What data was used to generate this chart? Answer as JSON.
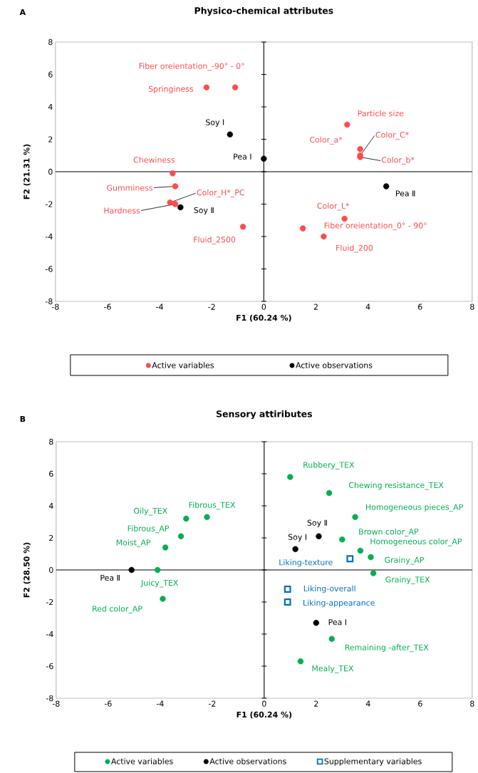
{
  "chart_data": [
    {
      "type": "scatter",
      "title": "Physico-chemical attributes",
      "xlabel": "F1 (60.24 %)",
      "ylabel": "F2 (21.31 %)",
      "xlim": [
        -8,
        8
      ],
      "ylim": [
        -8,
        8
      ],
      "xticks": [
        -8,
        -6,
        -4,
        -2,
        0,
        2,
        4,
        6,
        8
      ],
      "yticks": [
        -8,
        -6,
        -4,
        -2,
        0,
        2,
        4,
        6,
        8
      ],
      "legend": "bottom",
      "series": [
        {
          "name": "Active variables",
          "color": "#ff4b4b",
          "marker": "circle",
          "x": [
            -1.1,
            -2.2,
            -3.5,
            -3.4,
            -3.6,
            -3.4,
            -0.8,
            3.2,
            3.7,
            3.7,
            3.7,
            3.1,
            1.5,
            2.3
          ],
          "values": [
            5.2,
            5.2,
            -0.1,
            -0.9,
            -1.9,
            -2.0,
            -3.4,
            2.9,
            1.4,
            1.0,
            0.9,
            -2.9,
            -3.5,
            -4.0
          ]
        },
        {
          "name": "Active observations",
          "color": "#000000",
          "marker": "circle",
          "x": [
            -1.3,
            0.0,
            -3.2,
            4.7
          ],
          "values": [
            2.3,
            0.8,
            -2.2,
            -0.9
          ]
        }
      ],
      "annotations": [
        "A",
        {
          "text": "Fiber oreientation_-90° - 0°",
          "x": -1.1,
          "y": 5.2
        },
        {
          "text": "Springiness",
          "x": -2.2,
          "y": 5.2
        },
        {
          "text": "Chewiness",
          "x": -3.5,
          "y": -0.1
        },
        {
          "text": "Gumminess",
          "x": -3.4,
          "y": -0.9
        },
        {
          "text": "Color_H*_PC",
          "x": -3.6,
          "y": -1.9
        },
        {
          "text": "Hardness",
          "x": -3.4,
          "y": -2.0
        },
        {
          "text": "Fluid_2500",
          "x": -0.8,
          "y": -3.4
        },
        {
          "text": "Particle size",
          "x": 3.2,
          "y": 2.9
        },
        {
          "text": "Color_a*",
          "x": 3.7,
          "y": 1.4
        },
        {
          "text": "Color_C*",
          "x": 3.7,
          "y": 1.0
        },
        {
          "text": "Color_b*",
          "x": 3.7,
          "y": 0.9
        },
        {
          "text": "Color_L*",
          "x": 3.1,
          "y": -2.9
        },
        {
          "text": "Fiber oreientation_0° - 90°",
          "x": 1.5,
          "y": -3.5
        },
        {
          "text": "Fluid_200",
          "x": 2.3,
          "y": -4.0
        },
        {
          "text": "Soy Ⅰ",
          "x": -1.3,
          "y": 2.3
        },
        {
          "text": "Pea Ⅰ",
          "x": 0.0,
          "y": 0.8
        },
        {
          "text": "Soy Ⅱ",
          "x": -3.2,
          "y": -2.2
        },
        {
          "text": "Pea Ⅱ",
          "x": 4.7,
          "y": -0.9
        }
      ]
    },
    {
      "type": "scatter",
      "title": "Sensory attiributes",
      "xlabel": "F1 (60.24 %)",
      "ylabel": "F2 (28.50 %)",
      "xlim": [
        -8,
        8
      ],
      "ylim": [
        -8,
        8
      ],
      "xticks": [
        -8,
        -6,
        -4,
        -2,
        0,
        2,
        4,
        6,
        8
      ],
      "yticks": [
        -8,
        -6,
        -4,
        -2,
        0,
        2,
        4,
        6,
        8
      ],
      "legend": "bottom",
      "series": [
        {
          "name": "Active variables",
          "color": "#00b050",
          "marker": "circle",
          "x": [
            1.0,
            2.5,
            3.5,
            3.0,
            3.7,
            4.1,
            4.2,
            2.6,
            1.4,
            -3.0,
            -2.2,
            -3.2,
            -3.8,
            -4.1,
            -3.9
          ],
          "values": [
            5.8,
            4.8,
            3.3,
            1.9,
            1.2,
            0.8,
            -0.2,
            -4.3,
            -5.7,
            3.2,
            3.3,
            2.1,
            1.4,
            0.0,
            -1.8
          ]
        },
        {
          "name": "Active observations",
          "color": "#000000",
          "marker": "circle",
          "x": [
            2.1,
            1.2,
            2.0,
            -5.1
          ],
          "values": [
            2.1,
            1.3,
            -3.3,
            0.0
          ]
        },
        {
          "name": "Supplementary variables",
          "color": "#0070c0",
          "marker": "square",
          "x": [
            3.3,
            0.9,
            0.9
          ],
          "values": [
            0.7,
            -1.2,
            -2.0
          ]
        }
      ],
      "annotations": [
        "B",
        {
          "text": "Rubbery_TEX",
          "x": 1.0,
          "y": 5.8
        },
        {
          "text": "Chewing resistance_TEX",
          "x": 2.5,
          "y": 4.8
        },
        {
          "text": "Homogeneous pieces_AP",
          "x": 3.5,
          "y": 3.3
        },
        {
          "text": "Brown color_AP",
          "x": 3.0,
          "y": 1.9
        },
        {
          "text": "Homogeneous color_AP",
          "x": 3.7,
          "y": 1.2
        },
        {
          "text": "Grainy_AP",
          "x": 4.1,
          "y": 0.8
        },
        {
          "text": "Grainy_TEX",
          "x": 4.2,
          "y": -0.2
        },
        {
          "text": "Remaining -after_TEX",
          "x": 2.6,
          "y": -4.3
        },
        {
          "text": "Mealy_TEX",
          "x": 1.4,
          "y": -5.7
        },
        {
          "text": "Oily_TEX",
          "x": -3.0,
          "y": 3.2
        },
        {
          "text": "Fibrous_TEX",
          "x": -2.2,
          "y": 3.3
        },
        {
          "text": "Fibrous_AP",
          "x": -3.2,
          "y": 2.1
        },
        {
          "text": "Moist_AP",
          "x": -3.8,
          "y": 1.4
        },
        {
          "text": "Juicy_TEX",
          "x": -4.1,
          "y": 0.0
        },
        {
          "text": "Red color_AP",
          "x": -3.9,
          "y": -1.8
        },
        {
          "text": "Soy Ⅱ",
          "x": 2.1,
          "y": 2.1
        },
        {
          "text": "Soy Ⅰ",
          "x": 1.2,
          "y": 1.3
        },
        {
          "text": "Pea Ⅰ",
          "x": 2.0,
          "y": -3.3
        },
        {
          "text": "Pea Ⅱ",
          "x": -5.1,
          "y": 0.0
        },
        {
          "text": "Liking-texture",
          "x": 3.3,
          "y": 0.7
        },
        {
          "text": "Liking-overall",
          "x": 0.9,
          "y": -1.2
        },
        {
          "text": "Liking-appearance",
          "x": 0.9,
          "y": -2.0
        }
      ]
    }
  ]
}
